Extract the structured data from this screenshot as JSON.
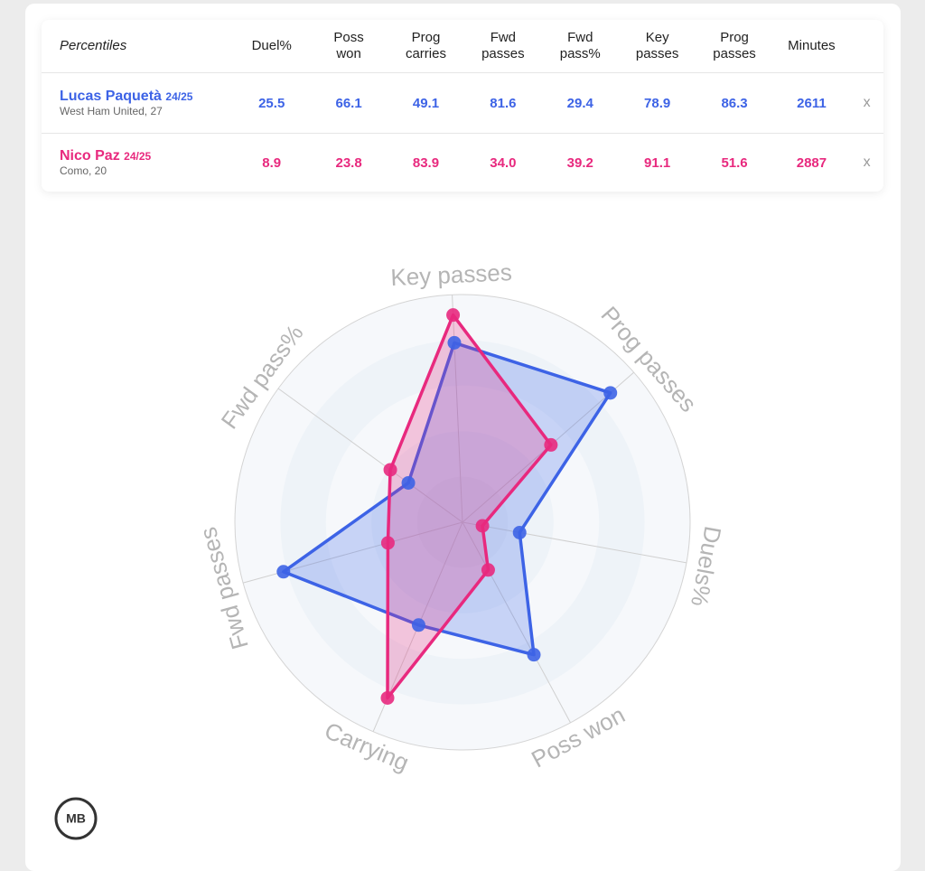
{
  "table": {
    "header": [
      "Percentiles",
      "Duel%",
      "Poss won",
      "Prog carries",
      "Fwd passes",
      "Fwd pass%",
      "Key passes",
      "Prog passes",
      "Minutes"
    ],
    "rows": [
      {
        "name": "Lucas Paquetà",
        "season": "24/25",
        "club": "West Ham United, 27",
        "values": [
          "25.5",
          "66.1",
          "49.1",
          "81.6",
          "29.4",
          "78.9",
          "86.3",
          "2611"
        ],
        "remove": "x"
      },
      {
        "name": "Nico Paz",
        "season": "24/25",
        "club": "Como, 20",
        "values": [
          "8.9",
          "23.8",
          "83.9",
          "34.0",
          "39.2",
          "91.1",
          "51.6",
          "2887"
        ],
        "remove": "x"
      }
    ]
  },
  "chart_data": {
    "type": "radar",
    "axes": [
      "Key passes",
      "Prog passes",
      "Duels%",
      "Poss won",
      "Carrying",
      "Fwd passes",
      "Fwd pass%"
    ],
    "series": [
      {
        "color": "#3d63e6",
        "values": [
          78.9,
          86.3,
          25.5,
          66.1,
          49.1,
          81.6,
          29.4
        ]
      },
      {
        "color": "#e8297e",
        "values": [
          91.1,
          51.6,
          8.9,
          23.8,
          83.9,
          34.0,
          39.2
        ]
      }
    ],
    "ylim": [
      0,
      100
    ]
  },
  "logo": "MB"
}
